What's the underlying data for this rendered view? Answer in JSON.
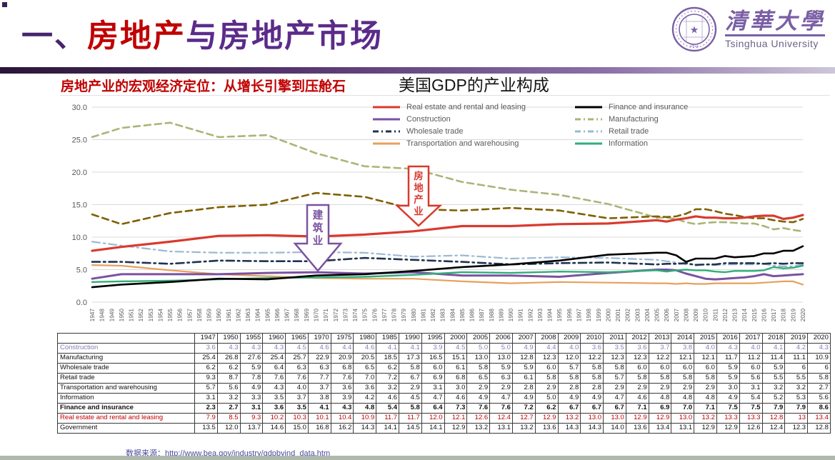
{
  "slide": {
    "title": {
      "prefix": "一、",
      "highlight": "房地产",
      "rest": "与房地产市场"
    },
    "subtitle": "房地产业的宏观经济定位：从增长引擎到压舱石",
    "logo": {
      "name_zh": "清華大學",
      "name_en": "Tsinghua University",
      "seal_year": "1911"
    },
    "source_label": "数据来源：",
    "source_url": "http://www.bea.gov/industry/gdpbyind_data.htm"
  },
  "chart_data": {
    "type": "line",
    "title": "美国GDP的产业构成",
    "xlabel": "",
    "ylabel": "",
    "ylim": [
      0,
      30
    ],
    "yticks": [
      0,
      5,
      10,
      15,
      20,
      25,
      30
    ],
    "ytick_labels": [
      "0.0",
      "5.0",
      "10.0",
      "15.0",
      "20.0",
      "25.0",
      "30.0"
    ],
    "grid": "horizontal",
    "legend_position": "top-right, two columns",
    "x_tick_labels": [
      1947,
      1948,
      1949,
      1950,
      1951,
      1952,
      1953,
      1954,
      1955,
      1956,
      1957,
      1958,
      1959,
      1960,
      1961,
      1962,
      1963,
      1964,
      1965,
      1966,
      1967,
      1968,
      1969,
      1970,
      1971,
      1972,
      1973,
      1974,
      1975,
      1976,
      1977,
      1978,
      1979,
      1980,
      1981,
      1982,
      1983,
      1984,
      1985,
      1986,
      1987,
      1988,
      1989,
      1990,
      1991,
      1992,
      1993,
      1994,
      1995,
      1996,
      1997,
      1998,
      1999,
      2000,
      2001,
      2002,
      2003,
      2004,
      2005,
      2006,
      2007,
      2008,
      2009,
      2010,
      2011,
      2012,
      2013,
      2014,
      2015,
      2016,
      2017,
      2018,
      2019,
      2020
    ],
    "x": [
      1947,
      1950,
      1955,
      1960,
      1965,
      1970,
      1975,
      1980,
      1985,
      1990,
      1995,
      2000,
      2005,
      2006,
      2007,
      2008,
      2009,
      2010,
      2011,
      2012,
      2013,
      2014,
      2015,
      2016,
      2017,
      2018,
      2019,
      2020
    ],
    "series": [
      {
        "name": "Manufacturing",
        "color": "#aab578",
        "line_style": "dashed",
        "width": 2.6,
        "in_legend": true,
        "values": [
          25.4,
          26.8,
          27.6,
          25.4,
          25.7,
          22.9,
          20.9,
          20.5,
          18.5,
          17.3,
          16.5,
          15.1,
          13.0,
          13.0,
          12.8,
          12.3,
          12.0,
          12.2,
          12.3,
          12.3,
          12.2,
          12.1,
          12.1,
          11.7,
          11.2,
          11.4,
          11.1,
          10.9
        ]
      },
      {
        "name": "Government",
        "color": "#7f6000",
        "line_style": "dashed",
        "width": 2.6,
        "in_legend": false,
        "values": [
          13.5,
          12.0,
          13.7,
          14.6,
          15.0,
          16.8,
          16.2,
          14.3,
          14.1,
          14.5,
          14.1,
          12.9,
          13.2,
          13.1,
          13.2,
          13.6,
          14.3,
          14.3,
          14.0,
          13.6,
          13.4,
          13.1,
          12.9,
          12.9,
          12.6,
          12.4,
          12.3,
          12.8
        ]
      },
      {
        "name": "Retail trade",
        "color": "#9bb8d3",
        "line_style": "dash-dot",
        "width": 2.2,
        "in_legend": true,
        "values": [
          9.3,
          8.7,
          7.8,
          7.6,
          7.6,
          7.7,
          7.6,
          7.0,
          7.2,
          6.7,
          6.9,
          6.8,
          6.5,
          6.3,
          6.1,
          5.8,
          5.8,
          5.8,
          5.7,
          5.8,
          5.8,
          5.8,
          5.8,
          5.9,
          5.6,
          5.5,
          5.5,
          5.8
        ]
      },
      {
        "name": "Wholesale trade",
        "color": "#1f3350",
        "line_style": "dash-dot",
        "width": 2.6,
        "in_legend": true,
        "values": [
          6.2,
          6.2,
          5.9,
          6.4,
          6.3,
          6.3,
          6.8,
          6.5,
          6.2,
          5.8,
          6.0,
          6.1,
          5.8,
          5.9,
          5.9,
          6.0,
          5.7,
          5.8,
          5.8,
          6.0,
          6.0,
          6.0,
          6.0,
          5.9,
          6.0,
          5.9,
          6,
          6
        ]
      },
      {
        "name": "Transportation and warehousing",
        "color": "#e8a05c",
        "line_style": "solid",
        "width": 2.2,
        "in_legend": true,
        "values": [
          5.7,
          5.6,
          4.9,
          4.3,
          4.0,
          3.7,
          3.6,
          3.6,
          3.2,
          2.9,
          3.1,
          3.0,
          2.9,
          2.9,
          2.8,
          2.9,
          2.8,
          2.8,
          2.9,
          2.9,
          2.9,
          2.9,
          2.9,
          3.0,
          3.1,
          3.2,
          3.2,
          2.7
        ]
      },
      {
        "name": "Construction",
        "color": "#7a52a0",
        "line_style": "solid",
        "width": 3.0,
        "in_legend": true,
        "values": [
          3.6,
          4.3,
          4.3,
          4.3,
          4.5,
          4.6,
          4.4,
          4.6,
          4.1,
          4.1,
          3.9,
          4.5,
          5.0,
          5.0,
          4.9,
          4.4,
          4.0,
          3.6,
          3.5,
          3.6,
          3.7,
          3.8,
          4.0,
          4.3,
          4.0,
          4.1,
          4.2,
          4.3
        ]
      },
      {
        "name": "Information",
        "color": "#2fae79",
        "line_style": "solid",
        "width": 2.4,
        "in_legend": true,
        "values": [
          3.1,
          3.2,
          3.3,
          3.5,
          3.7,
          3.8,
          3.9,
          4.2,
          4.6,
          4.5,
          4.7,
          4.6,
          4.9,
          4.7,
          4.9,
          5.0,
          4.9,
          4.9,
          4.7,
          4.6,
          4.8,
          4.8,
          4.8,
          4.9,
          5.4,
          5.2,
          5.3,
          5.6
        ]
      },
      {
        "name": "Finance and insurance",
        "color": "#000000",
        "line_style": "solid",
        "width": 2.6,
        "in_legend": true,
        "values": [
          2.3,
          2.7,
          3.1,
          3.6,
          3.5,
          4.1,
          4.3,
          4.8,
          5.4,
          5.8,
          6.4,
          7.3,
          7.6,
          7.6,
          7.2,
          6.2,
          6.7,
          6.7,
          6.7,
          7.1,
          6.9,
          7.0,
          7.1,
          7.5,
          7.5,
          7.9,
          7.9,
          8.6
        ]
      },
      {
        "name": "Real estate and rental and leasing",
        "color": "#d93a2e",
        "line_style": "solid",
        "width": 3.2,
        "in_legend": true,
        "values": [
          7.9,
          8.5,
          9.3,
          10.2,
          10.3,
          10.1,
          10.4,
          10.9,
          11.7,
          11.7,
          12.0,
          12.1,
          12.6,
          12.4,
          12.7,
          12.9,
          13.2,
          13.0,
          13.0,
          12.9,
          12.9,
          13.0,
          13.2,
          13.3,
          13.3,
          12.8,
          13,
          13.4
        ]
      }
    ],
    "legend_columns": [
      [
        "Real estate and rental and leasing",
        "Construction",
        "Wholesale trade",
        "Transportation and warehousing"
      ],
      [
        "Finance and insurance",
        "Manufacturing",
        "Retail trade",
        "Information"
      ]
    ],
    "annotations": [
      {
        "text": "房地产业",
        "color": "#d93a2e",
        "target": "Real estate and rental and leasing"
      },
      {
        "text": "建筑业",
        "color": "#7a52a0",
        "target": "Construction"
      }
    ]
  },
  "table": {
    "columns": [
      "1947",
      "1950",
      "1955",
      "1960",
      "1965",
      "1970",
      "1975",
      "1980",
      "1985",
      "1990",
      "1995",
      "2000",
      "2005",
      "2006",
      "2007",
      "2008",
      "2009",
      "2010",
      "2011",
      "2012",
      "2013",
      "2014",
      "2015",
      "2016",
      "2017",
      "2018",
      "2019",
      "2020"
    ],
    "rows": [
      {
        "label": "Construction",
        "style": "purple",
        "values": [
          "3.6",
          "4.3",
          "4.3",
          "4.3",
          "4.5",
          "4.6",
          "4.4",
          "4.6",
          "4.1",
          "4.1",
          "3.9",
          "4.5",
          "5.0",
          "5.0",
          "4.9",
          "4.4",
          "4.0",
          "3.6",
          "3.5",
          "3.6",
          "3.7",
          "3.8",
          "4.0",
          "4.3",
          "4.0",
          "4.1",
          "4.2",
          "4.3"
        ]
      },
      {
        "label": "Manufacturing",
        "style": "normal",
        "values": [
          "25.4",
          "26.8",
          "27.6",
          "25.4",
          "25.7",
          "22.9",
          "20.9",
          "20.5",
          "18.5",
          "17.3",
          "16.5",
          "15.1",
          "13.0",
          "13.0",
          "12.8",
          "12.3",
          "12.0",
          "12.2",
          "12.3",
          "12.3",
          "12.2",
          "12.1",
          "12.1",
          "11.7",
          "11.2",
          "11.4",
          "11.1",
          "10.9"
        ]
      },
      {
        "label": "Wholesale trade",
        "style": "normal",
        "values": [
          "6.2",
          "6.2",
          "5.9",
          "6.4",
          "6.3",
          "6.3",
          "6.8",
          "6.5",
          "6.2",
          "5.8",
          "6.0",
          "6.1",
          "5.8",
          "5.9",
          "5.9",
          "6.0",
          "5.7",
          "5.8",
          "5.8",
          "6.0",
          "6.0",
          "6.0",
          "6.0",
          "5.9",
          "6.0",
          "5.9",
          "6",
          "6"
        ]
      },
      {
        "label": "Retail trade",
        "style": "normal",
        "values": [
          "9.3",
          "8.7",
          "7.8",
          "7.6",
          "7.6",
          "7.7",
          "7.6",
          "7.0",
          "7.2",
          "6.7",
          "6.9",
          "6.8",
          "6.5",
          "6.3",
          "6.1",
          "5.8",
          "5.8",
          "5.8",
          "5.7",
          "5.8",
          "5.8",
          "5.8",
          "5.8",
          "5.9",
          "5.6",
          "5.5",
          "5.5",
          "5.8"
        ]
      },
      {
        "label": "Transportation and warehousing",
        "style": "normal",
        "values": [
          "5.7",
          "5.6",
          "4.9",
          "4.3",
          "4.0",
          "3.7",
          "3.6",
          "3.6",
          "3.2",
          "2.9",
          "3.1",
          "3.0",
          "2.9",
          "2.9",
          "2.8",
          "2.9",
          "2.8",
          "2.8",
          "2.9",
          "2.9",
          "2.9",
          "2.9",
          "2.9",
          "3.0",
          "3.1",
          "3.2",
          "3.2",
          "2.7"
        ]
      },
      {
        "label": "Information",
        "style": "normal",
        "values": [
          "3.1",
          "3.2",
          "3.3",
          "3.5",
          "3.7",
          "3.8",
          "3.9",
          "4.2",
          "4.6",
          "4.5",
          "4.7",
          "4.6",
          "4.9",
          "4.7",
          "4.9",
          "5.0",
          "4.9",
          "4.9",
          "4.7",
          "4.6",
          "4.8",
          "4.8",
          "4.8",
          "4.9",
          "5.4",
          "5.2",
          "5.3",
          "5.6"
        ]
      },
      {
        "label": "Finance and insurance",
        "style": "bold",
        "values": [
          "2.3",
          "2.7",
          "3.1",
          "3.6",
          "3.5",
          "4.1",
          "4.3",
          "4.8",
          "5.4",
          "5.8",
          "6.4",
          "7.3",
          "7.6",
          "7.6",
          "7.2",
          "6.2",
          "6.7",
          "6.7",
          "6.7",
          "7.1",
          "6.9",
          "7.0",
          "7.1",
          "7.5",
          "7.5",
          "7.9",
          "7.9",
          "8.6"
        ]
      },
      {
        "label": "Real estate and rental and leasing",
        "style": "red",
        "values": [
          "7.9",
          "8.5",
          "9.3",
          "10.2",
          "10.3",
          "10.1",
          "10.4",
          "10.9",
          "11.7",
          "11.7",
          "12.0",
          "12.1",
          "12.6",
          "12.4",
          "12.7",
          "12.9",
          "13.2",
          "13.0",
          "13.0",
          "12.9",
          "12.9",
          "13.0",
          "13.2",
          "13.3",
          "13.3",
          "12.8",
          "13",
          "13.4"
        ]
      },
      {
        "label": "Government",
        "style": "normal",
        "values": [
          "13.5",
          "12.0",
          "13.7",
          "14.6",
          "15.0",
          "16.8",
          "16.2",
          "14.3",
          "14.1",
          "14.5",
          "14.1",
          "12.9",
          "13.2",
          "13.1",
          "13.2",
          "13.6",
          "14.3",
          "14.3",
          "14.0",
          "13.6",
          "13.4",
          "13.1",
          "12.9",
          "12.9",
          "12.6",
          "12.4",
          "12.3",
          "12.8"
        ]
      }
    ]
  }
}
